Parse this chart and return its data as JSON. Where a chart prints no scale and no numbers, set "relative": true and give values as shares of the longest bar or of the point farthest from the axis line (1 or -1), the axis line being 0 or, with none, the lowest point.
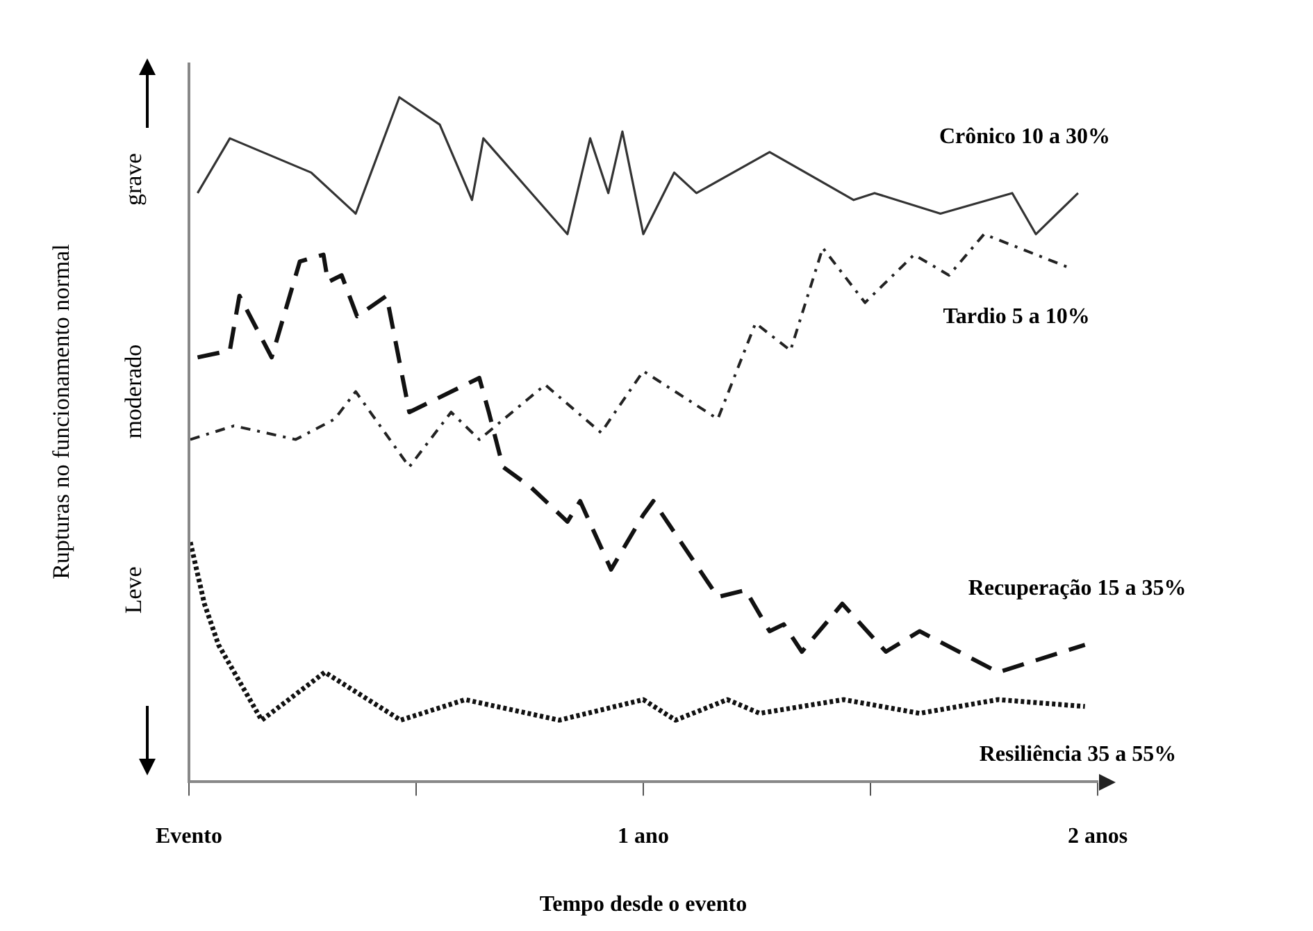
{
  "chart_data": {
    "type": "line",
    "relative": true,
    "xlabel": "Tempo desde o evento",
    "ylabel": "Rupturas no funcionamento normal",
    "xlim": [
      0,
      2
    ],
    "xticks": [
      {
        "value": 0,
        "label": "Evento"
      },
      {
        "value": 0.5,
        "label": null
      },
      {
        "value": 1,
        "label": "1 ano"
      },
      {
        "value": 1.5,
        "label": null
      },
      {
        "value": 2,
        "label": "2 anos"
      }
    ],
    "legend": false,
    "grid": false,
    "annotations": [
      "grave",
      "moderado",
      "Leve"
    ],
    "series": [
      {
        "name": "Crônico 10 a 30%",
        "color": "#333333",
        "line_style": "solid",
        "x": [
          0.019,
          0.09,
          0.269,
          0.367,
          0.463,
          0.552,
          0.623,
          0.648,
          0.833,
          0.883,
          0.923,
          0.954,
          1.0,
          1.068,
          1.117,
          1.278,
          1.463,
          1.509,
          1.654,
          1.812,
          1.864,
          1.957
        ],
        "values": [
          0.86,
          0.94,
          0.89,
          0.83,
          1.0,
          0.96,
          0.85,
          0.94,
          0.8,
          0.94,
          0.86,
          0.95,
          0.8,
          0.89,
          0.86,
          0.92,
          0.85,
          0.86,
          0.83,
          0.86,
          0.8,
          0.86
        ]
      },
      {
        "name": "Tardio 5 a 10%",
        "color": "#222222",
        "line_style": "dashdot",
        "x": [
          0.003,
          0.099,
          0.235,
          0.321,
          0.367,
          0.485,
          0.577,
          0.639,
          0.784,
          0.907,
          1.0,
          1.164,
          1.247,
          1.324,
          1.395,
          1.488,
          1.596,
          1.673,
          1.75,
          1.941
        ],
        "values": [
          0.5,
          0.52,
          0.5,
          0.53,
          0.57,
          0.46,
          0.54,
          0.5,
          0.58,
          0.51,
          0.6,
          0.53,
          0.67,
          0.63,
          0.78,
          0.7,
          0.77,
          0.74,
          0.8,
          0.75
        ]
      },
      {
        "name": "Recuperação 15 a 35%",
        "color": "#111111",
        "line_style": "dashed",
        "x": [
          0.019,
          0.09,
          0.111,
          0.182,
          0.244,
          0.296,
          0.306,
          0.336,
          0.37,
          0.435,
          0.485,
          0.639,
          0.66,
          0.691,
          0.753,
          0.833,
          0.861,
          0.929,
          1.0,
          1.022,
          1.164,
          1.225,
          1.278,
          1.309,
          1.349,
          1.438,
          1.534,
          1.608,
          1.781,
          1.972
        ],
        "values": [
          0.62,
          0.63,
          0.71,
          0.62,
          0.76,
          0.77,
          0.73,
          0.74,
          0.68,
          0.71,
          0.54,
          0.59,
          0.54,
          0.46,
          0.43,
          0.38,
          0.41,
          0.31,
          0.39,
          0.41,
          0.27,
          0.28,
          0.22,
          0.23,
          0.19,
          0.26,
          0.19,
          0.22,
          0.16,
          0.2
        ]
      },
      {
        "name": "Resiliência 35 a 55%",
        "color": "#111111",
        "line_style": "dotted",
        "x": [
          0.003,
          0.034,
          0.065,
          0.16,
          0.299,
          0.466,
          0.608,
          0.815,
          1.0,
          1.071,
          1.185,
          1.256,
          1.441,
          1.608,
          1.781,
          1.972
        ],
        "values": [
          0.35,
          0.26,
          0.2,
          0.09,
          0.16,
          0.09,
          0.12,
          0.09,
          0.12,
          0.09,
          0.12,
          0.1,
          0.12,
          0.1,
          0.12,
          0.11
        ]
      }
    ]
  }
}
